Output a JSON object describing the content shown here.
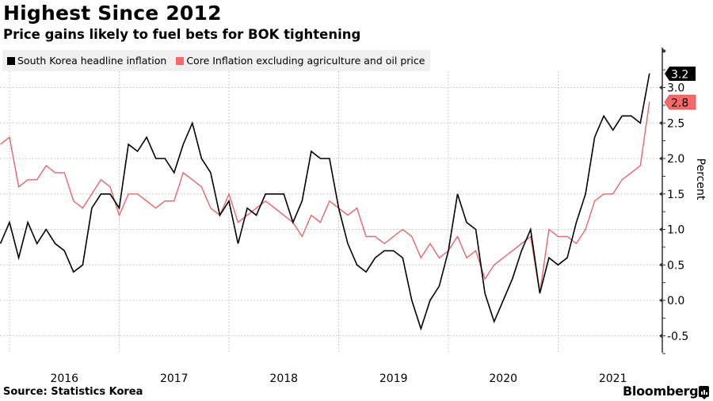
{
  "chart_data": {
    "type": "line",
    "title": "Highest Since 2012",
    "subtitle": "Price gains likely to fuel bets for BOK tightening",
    "xlabel": "",
    "ylabel": "Percent",
    "ylim": [
      -0.75,
      3.5
    ],
    "yticks": [
      -0.5,
      0.0,
      0.5,
      1.0,
      1.5,
      2.0,
      2.5,
      3.0
    ],
    "ytick_labels": [
      "-0.5",
      "0.0",
      "0.5",
      "1.0",
      "1.5",
      "2.0",
      "2.5",
      "3.0"
    ],
    "x_start": "2015-11",
    "x_frequency": "monthly",
    "year_labels": [
      "2016",
      "2017",
      "2018",
      "2019",
      "2020",
      "2021"
    ],
    "grid": true,
    "legend_position": "top-left",
    "series": [
      {
        "name": "South Korea headline inflation",
        "color": "#000000",
        "last_value_label": "3.2",
        "values": [
          0.8,
          1.1,
          0.6,
          1.1,
          0.8,
          1.0,
          0.8,
          0.7,
          0.4,
          0.5,
          1.3,
          1.5,
          1.5,
          1.3,
          2.2,
          2.1,
          2.3,
          2.0,
          2.0,
          1.8,
          2.2,
          2.5,
          2.0,
          1.8,
          1.2,
          1.4,
          0.8,
          1.3,
          1.2,
          1.5,
          1.5,
          1.5,
          1.1,
          1.4,
          2.1,
          2.0,
          2.0,
          1.3,
          0.8,
          0.5,
          0.4,
          0.6,
          0.7,
          0.7,
          0.6,
          0.0,
          -0.4,
          0.0,
          0.2,
          0.7,
          1.5,
          1.1,
          1.0,
          0.1,
          -0.3,
          0.0,
          0.3,
          0.7,
          1.0,
          0.1,
          0.6,
          0.5,
          0.6,
          1.1,
          1.5,
          2.3,
          2.6,
          2.4,
          2.6,
          2.6,
          2.5,
          3.2
        ]
      },
      {
        "name": "Core Inflation excluding agriculture and oil price",
        "color": "#e8646c",
        "tag_color": "#f86a6a",
        "last_value_label": "2.8",
        "values": [
          2.2,
          2.3,
          1.6,
          1.7,
          1.7,
          1.9,
          1.8,
          1.8,
          1.4,
          1.3,
          1.5,
          1.7,
          1.6,
          1.2,
          1.5,
          1.5,
          1.4,
          1.3,
          1.4,
          1.4,
          1.8,
          1.7,
          1.6,
          1.3,
          1.2,
          1.5,
          1.1,
          1.2,
          1.3,
          1.4,
          1.3,
          1.2,
          1.1,
          0.9,
          1.2,
          1.1,
          1.4,
          1.3,
          1.2,
          1.3,
          0.9,
          0.9,
          0.8,
          0.9,
          1.0,
          0.9,
          0.6,
          0.8,
          0.6,
          0.7,
          0.9,
          0.6,
          0.7,
          0.3,
          0.5,
          0.6,
          0.7,
          0.8,
          0.9,
          0.1,
          1.0,
          0.9,
          0.9,
          0.8,
          1.0,
          1.4,
          1.5,
          1.5,
          1.7,
          1.8,
          1.9,
          2.8
        ]
      }
    ]
  },
  "footer": {
    "source": "Source:  Statistics Korea",
    "brand": "Bloomberg"
  }
}
